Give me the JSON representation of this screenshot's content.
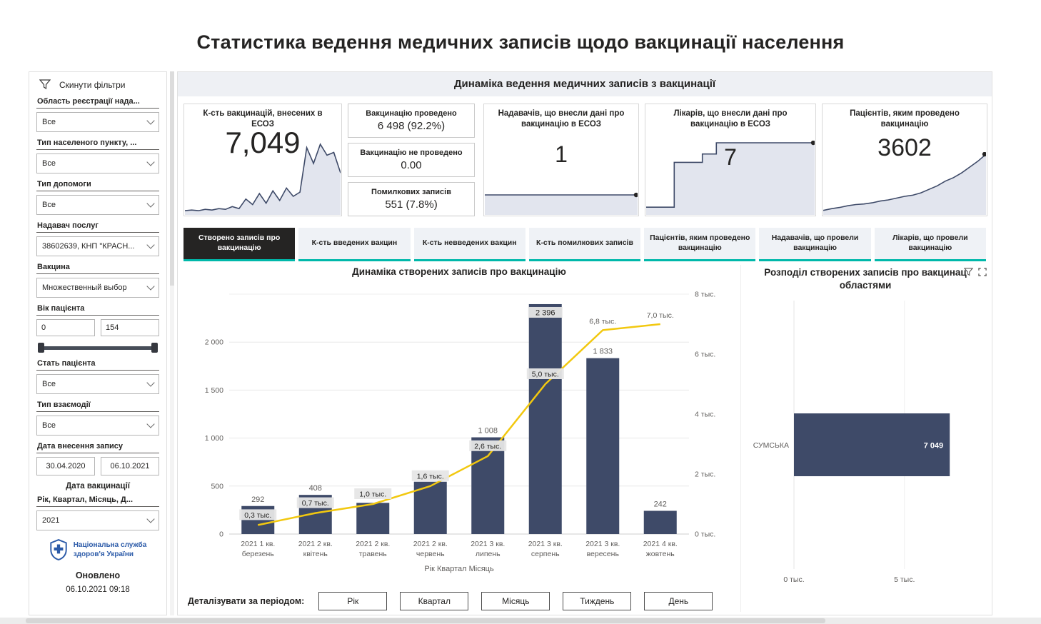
{
  "colors": {
    "navy": "#3E4A68",
    "yellow": "#F2C80F",
    "teal": "#00B8AA",
    "text_dark": "#252423",
    "text_gray": "#605E5C",
    "spark_fill": "#E2E5EE",
    "label_box": "#E6E6E6",
    "logo_blue": "#2B5AA8"
  },
  "page_title": "Статистика ведення медичних записів щодо вакцинації населення",
  "sidebar": {
    "reset_label": "Скинути фільтри",
    "items": [
      {
        "type": "dropdown",
        "label": "Область реєстрації нада...",
        "value": "Все"
      },
      {
        "type": "dropdown",
        "label": "Тип населеного пункту, ...",
        "value": "Все"
      },
      {
        "type": "dropdown",
        "label": "Тип допомоги",
        "value": "Все"
      },
      {
        "type": "dropdown",
        "label": "Надавач послуг",
        "value": "38602639, КНП \"КРАСН..."
      },
      {
        "type": "dropdown",
        "label": "Вакцина",
        "value": "Множественный выбор"
      },
      {
        "type": "range",
        "label": "Вік пацієнта",
        "min": "0",
        "max": "154"
      },
      {
        "type": "dropdown",
        "label": "Стать пацієнта",
        "value": "Все"
      },
      {
        "type": "dropdown",
        "label": "Тип взаємодії",
        "value": "Все"
      },
      {
        "type": "dates",
        "label": "Дата внесення запису",
        "from": "30.04.2020",
        "to": "06.10.2021"
      },
      {
        "type": "heading",
        "label": "Дата вакцинації"
      },
      {
        "type": "dropdown",
        "label": "Рік, Квартал, Місяць, Д...",
        "value": "2021"
      }
    ],
    "logo_line1": "Національна служба",
    "logo_line2": "здоров'я України",
    "updated_label": "Оновлено",
    "updated_value": "06.10.2021 09:18"
  },
  "main": {
    "header": "Динаміка ведення медичних записів з вакцинації",
    "kpi": {
      "card1": {
        "title": "К-сть вакцинацій, внесених в ЕСОЗ",
        "value": "7,049",
        "spark": [
          3,
          4,
          3,
          5,
          4,
          6,
          5,
          9,
          6,
          20,
          12,
          28,
          14,
          32,
          18,
          36,
          24,
          30,
          95,
          72,
          100,
          84,
          88,
          58
        ]
      },
      "card2": [
        {
          "label": "Вакцинацію проведено",
          "value": "6 498 (92.2%)"
        },
        {
          "label": "Вакцинацію не проведено",
          "value": "0.00"
        },
        {
          "label": "Помилкових записів",
          "value": "551 (7.8%)"
        }
      ],
      "card3": {
        "title": "Надавачів, що внесли дані про вакцинацію в ЕСОЗ",
        "value": "1",
        "spark": [
          52,
          52,
          52,
          52
        ]
      },
      "card4": {
        "title": "Лікарів, що внесли дані про вакцинацію в ЕСОЗ",
        "value": "7",
        "spark": [
          8,
          8,
          72,
          72,
          84,
          100,
          100,
          100,
          100,
          100,
          100,
          100,
          100
        ]
      },
      "card5": {
        "title": "Пацієнтів, яким проведено вакцинацію",
        "value": "3602",
        "spark": [
          4,
          7,
          9,
          12,
          14,
          15,
          17,
          20,
          22,
          25,
          28,
          30,
          34,
          40,
          46,
          54,
          60,
          68,
          78,
          88,
          100
        ]
      }
    },
    "tabs": [
      {
        "label": "Створено записів про вакцинацію",
        "active": true
      },
      {
        "label": "К-сть введених вакцин",
        "active": false
      },
      {
        "label": "К-сть невведених вакцин",
        "active": false
      },
      {
        "label": "К-сть помилкових записів",
        "active": false
      },
      {
        "label": "Пацієнтів, яким проведено вакцинацію",
        "active": false
      },
      {
        "label": "Надавачів, що провели вакцинацію",
        "active": false
      },
      {
        "label": "Лікарів, що провели вакцинацію",
        "active": false
      }
    ],
    "drill": {
      "label": "Деталізувати за періодом:",
      "buttons": [
        "Рік",
        "Квартал",
        "Місяць",
        "Тиждень",
        "День"
      ]
    }
  },
  "right_panel": {
    "title_line1": "Розподіл створених записів про вакцинац",
    "title_line2": "областями"
  },
  "chart_data": [
    {
      "type": "bar",
      "subtype": "column+cumulative-line combo",
      "title": "Динаміка створених записів про вакцинацію",
      "categories": [
        [
          "2021 1 кв.",
          "березень"
        ],
        [
          "2021 2 кв.",
          "квітень"
        ],
        [
          "2021 2 кв.",
          "травень"
        ],
        [
          "2021 2 кв.",
          "червень"
        ],
        [
          "2021 3 кв.",
          "липень"
        ],
        [
          "2021 3 кв.",
          "серпень"
        ],
        [
          "2021 3 кв.",
          "вересень"
        ],
        [
          "2021 4 кв.",
          "жовтень"
        ]
      ],
      "xlabel": "Рік Квартал Місяць",
      "bars": {
        "values": [
          292,
          408,
          325,
          545,
          1008,
          2396,
          1833,
          242
        ],
        "labels": [
          "292",
          "408",
          "325",
          "545",
          "1 008",
          "2 396",
          "1 833",
          "242"
        ]
      },
      "line": {
        "values": [
          300,
          700,
          1000,
          1600,
          2600,
          5000,
          6800,
          7000
        ],
        "labels": [
          "0,3 тыс.",
          "0,7 тыс.",
          "1,0 тыс.",
          "1,6 тыс.",
          "2,6 тыс.",
          "5,0 тыс.",
          "6,8 тыс.",
          "7,0 тыс."
        ]
      },
      "left_axis": {
        "ticks": [
          0,
          500,
          1000,
          1500,
          2000
        ],
        "tick_labels": [
          "0",
          "500",
          "1 000",
          "1 500",
          "2 000"
        ],
        "plot_max": 2500
      },
      "right_axis": {
        "ticks": [
          0,
          2000,
          4000,
          6000,
          8000
        ],
        "tick_labels": [
          "0 тыс.",
          "2 тыс.",
          "4 тыс.",
          "6 тыс.",
          "8 тыс."
        ],
        "plot_max": 8000
      },
      "legend": "off",
      "grid": "horizontal"
    },
    {
      "type": "bar",
      "subtype": "horizontal",
      "title": "Розподіл створених записів про вакцинац… областями",
      "categories": [
        "СУМСЬКА"
      ],
      "values": [
        7049
      ],
      "value_labels": [
        "7 049"
      ],
      "x_ticks": [
        0,
        5000
      ],
      "x_tick_labels": [
        "0 тыс.",
        "5 тыс."
      ],
      "xmax": 8400
    }
  ]
}
